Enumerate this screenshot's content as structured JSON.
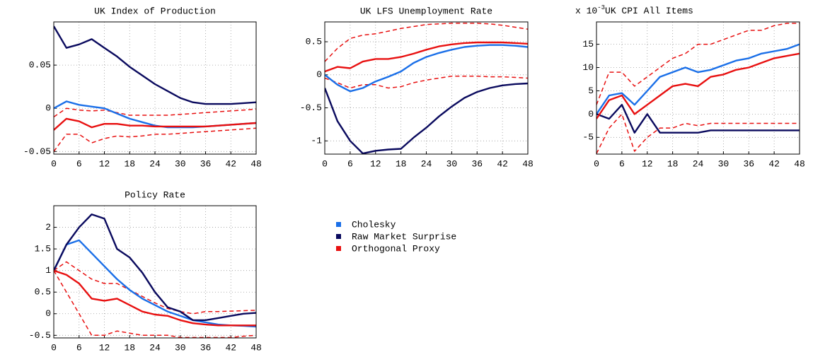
{
  "chart_data": [
    {
      "type": "line",
      "title": "UK Index of Production",
      "x": [
        0,
        3,
        6,
        9,
        12,
        15,
        18,
        21,
        24,
        27,
        30,
        33,
        36,
        39,
        42,
        45,
        48
      ],
      "xlim": [
        0,
        48
      ],
      "xticks": [
        0,
        6,
        12,
        18,
        24,
        30,
        36,
        42,
        48
      ],
      "ylim": [
        -0.053,
        0.1
      ],
      "yticks": [
        -0.05,
        0,
        0.05
      ],
      "grid": true,
      "series": [
        {
          "name": "Cholesky",
          "color": "#1a6fe8",
          "values": [
            0,
            0.008,
            0.004,
            0.002,
            0,
            -0.006,
            -0.012,
            -0.016,
            -0.02,
            -0.022,
            -0.022,
            -0.022,
            -0.021,
            -0.02,
            -0.019,
            -0.018,
            -0.017
          ]
        },
        {
          "name": "Raw Market Surprise",
          "color": "#0a0a5e",
          "values": [
            0.095,
            0.07,
            0.074,
            0.08,
            0.07,
            0.06,
            0.048,
            0.038,
            0.028,
            0.02,
            0.012,
            0.007,
            0.005,
            0.005,
            0.005,
            0.006,
            0.007
          ]
        },
        {
          "name": "Orthogonal Proxy",
          "color": "#e81010",
          "values": [
            -0.025,
            -0.012,
            -0.015,
            -0.022,
            -0.018,
            -0.018,
            -0.02,
            -0.02,
            -0.021,
            -0.021,
            -0.021,
            -0.021,
            -0.021,
            -0.02,
            -0.019,
            -0.018,
            -0.017
          ],
          "upper": [
            -0.01,
            0,
            -0.002,
            -0.003,
            -0.002,
            -0.005,
            -0.008,
            -0.008,
            -0.008,
            -0.008,
            -0.007,
            -0.006,
            -0.005,
            -0.004,
            -0.003,
            -0.002,
            -0.001
          ],
          "lower": [
            -0.05,
            -0.03,
            -0.03,
            -0.04,
            -0.035,
            -0.032,
            -0.033,
            -0.032,
            -0.03,
            -0.03,
            -0.029,
            -0.028,
            -0.027,
            -0.026,
            -0.025,
            -0.024,
            -0.023
          ]
        }
      ]
    },
    {
      "type": "line",
      "title": "UK LFS Unemployment Rate",
      "x": [
        0,
        3,
        6,
        9,
        12,
        15,
        18,
        21,
        24,
        27,
        30,
        33,
        36,
        39,
        42,
        45,
        48
      ],
      "xlim": [
        0,
        48
      ],
      "xticks": [
        0,
        6,
        12,
        18,
        24,
        30,
        36,
        42,
        48
      ],
      "ylim": [
        -1.2,
        0.8
      ],
      "yticks": [
        -1,
        -0.5,
        0,
        0.5
      ],
      "grid": true,
      "series": [
        {
          "name": "Cholesky",
          "color": "#1a6fe8",
          "values": [
            0,
            -0.15,
            -0.25,
            -0.2,
            -0.1,
            -0.03,
            0.05,
            0.18,
            0.27,
            0.33,
            0.38,
            0.42,
            0.44,
            0.45,
            0.45,
            0.44,
            0.42
          ]
        },
        {
          "name": "Raw Market Surprise",
          "color": "#0a0a5e",
          "values": [
            -0.2,
            -0.7,
            -1,
            -1.19,
            -1.15,
            -1.13,
            -1.12,
            -0.95,
            -0.8,
            -0.63,
            -0.48,
            -0.35,
            -0.26,
            -0.2,
            -0.16,
            -0.14,
            -0.13
          ]
        },
        {
          "name": "Orthogonal Proxy",
          "color": "#e81010",
          "values": [
            0.05,
            0.12,
            0.1,
            0.2,
            0.24,
            0.24,
            0.27,
            0.32,
            0.38,
            0.43,
            0.46,
            0.48,
            0.49,
            0.49,
            0.49,
            0.48,
            0.47
          ],
          "upper": [
            0.2,
            0.4,
            0.55,
            0.6,
            0.62,
            0.66,
            0.7,
            0.73,
            0.76,
            0.77,
            0.78,
            0.78,
            0.78,
            0.77,
            0.75,
            0.72,
            0.69
          ],
          "lower": [
            -0.05,
            -0.12,
            -0.2,
            -0.15,
            -0.15,
            -0.2,
            -0.18,
            -0.12,
            -0.08,
            -0.05,
            -0.02,
            -0.02,
            -0.02,
            -0.03,
            -0.03,
            -0.04,
            -0.05
          ]
        }
      ]
    },
    {
      "type": "line",
      "title": "UK CPI All Items",
      "scale_label": "x 10",
      "scale_exponent": "-3",
      "x": [
        0,
        3,
        6,
        9,
        12,
        15,
        18,
        21,
        24,
        27,
        30,
        33,
        36,
        39,
        42,
        45,
        48
      ],
      "xlim": [
        0,
        48
      ],
      "xticks": [
        0,
        6,
        12,
        18,
        24,
        30,
        36,
        42,
        48
      ],
      "ylim": [
        -8.6,
        19.8
      ],
      "yticks": [
        -5,
        0,
        5,
        10,
        15
      ],
      "grid": true,
      "series": [
        {
          "name": "Cholesky",
          "color": "#1a6fe8",
          "values": [
            0,
            4,
            4.5,
            2,
            5,
            8,
            9,
            10,
            9,
            9.5,
            10.5,
            11.5,
            12,
            13,
            13.5,
            14,
            15
          ]
        },
        {
          "name": "Raw Market Surprise",
          "color": "#0a0a5e",
          "values": [
            0,
            -1,
            2,
            -4,
            0,
            -4,
            -4,
            -4,
            -4,
            -3.5,
            -3.5,
            -3.5,
            -3.5,
            -3.5,
            -3.5,
            -3.5,
            -3.5
          ]
        },
        {
          "name": "Orthogonal Proxy",
          "color": "#e81010",
          "values": [
            -1,
            3,
            4,
            0,
            2,
            4,
            6,
            6.5,
            6,
            8,
            8.5,
            9.5,
            10,
            11,
            12,
            12.5,
            13
          ],
          "upper": [
            2,
            9,
            9,
            6,
            8,
            10,
            12,
            13,
            15,
            15,
            16,
            17,
            18,
            18,
            19,
            19.5,
            19.5
          ],
          "lower": [
            -8.5,
            -3,
            0,
            -8,
            -5,
            -3,
            -3,
            -2,
            -2.5,
            -2,
            -2,
            -2,
            -2,
            -2,
            -2,
            -2,
            -2
          ]
        }
      ]
    },
    {
      "type": "line",
      "title": "Policy Rate",
      "x": [
        0,
        3,
        6,
        9,
        12,
        15,
        18,
        21,
        24,
        27,
        30,
        33,
        36,
        39,
        42,
        45,
        48
      ],
      "xlim": [
        0,
        48
      ],
      "xticks": [
        0,
        6,
        12,
        18,
        24,
        30,
        36,
        42,
        48
      ],
      "ylim": [
        -0.56,
        2.5
      ],
      "yticks": [
        -0.5,
        0,
        0.5,
        1,
        1.5,
        2
      ],
      "grid": true,
      "series": [
        {
          "name": "Cholesky",
          "color": "#1a6fe8",
          "values": [
            1,
            1.6,
            1.7,
            1.4,
            1.1,
            0.8,
            0.55,
            0.35,
            0.2,
            0.05,
            -0.05,
            -0.15,
            -0.2,
            -0.25,
            -0.27,
            -0.28,
            -0.3
          ]
        },
        {
          "name": "Raw Market Surprise",
          "color": "#0a0a5e",
          "values": [
            1,
            1.6,
            2,
            2.3,
            2.2,
            1.5,
            1.3,
            0.95,
            0.5,
            0.15,
            0.05,
            -0.15,
            -0.15,
            -0.1,
            -0.05,
            0,
            0.02
          ]
        },
        {
          "name": "Orthogonal Proxy",
          "color": "#e81010",
          "values": [
            1,
            0.9,
            0.7,
            0.35,
            0.3,
            0.35,
            0.2,
            0.05,
            -0.02,
            -0.05,
            -0.15,
            -0.22,
            -0.25,
            -0.27,
            -0.27,
            -0.27,
            -0.27
          ],
          "upper": [
            1,
            1.2,
            1,
            0.8,
            0.7,
            0.7,
            0.55,
            0.4,
            0.25,
            0.12,
            0.05,
            0,
            0.05,
            0.05,
            0.06,
            0.07,
            0.08
          ],
          "lower": [
            1,
            0.5,
            0,
            -0.5,
            -0.5,
            -0.4,
            -0.45,
            -0.5,
            -0.5,
            -0.5,
            -0.55,
            -0.55,
            -0.55,
            -0.55,
            -0.55,
            -0.52,
            -0.5
          ]
        }
      ]
    }
  ]
}
